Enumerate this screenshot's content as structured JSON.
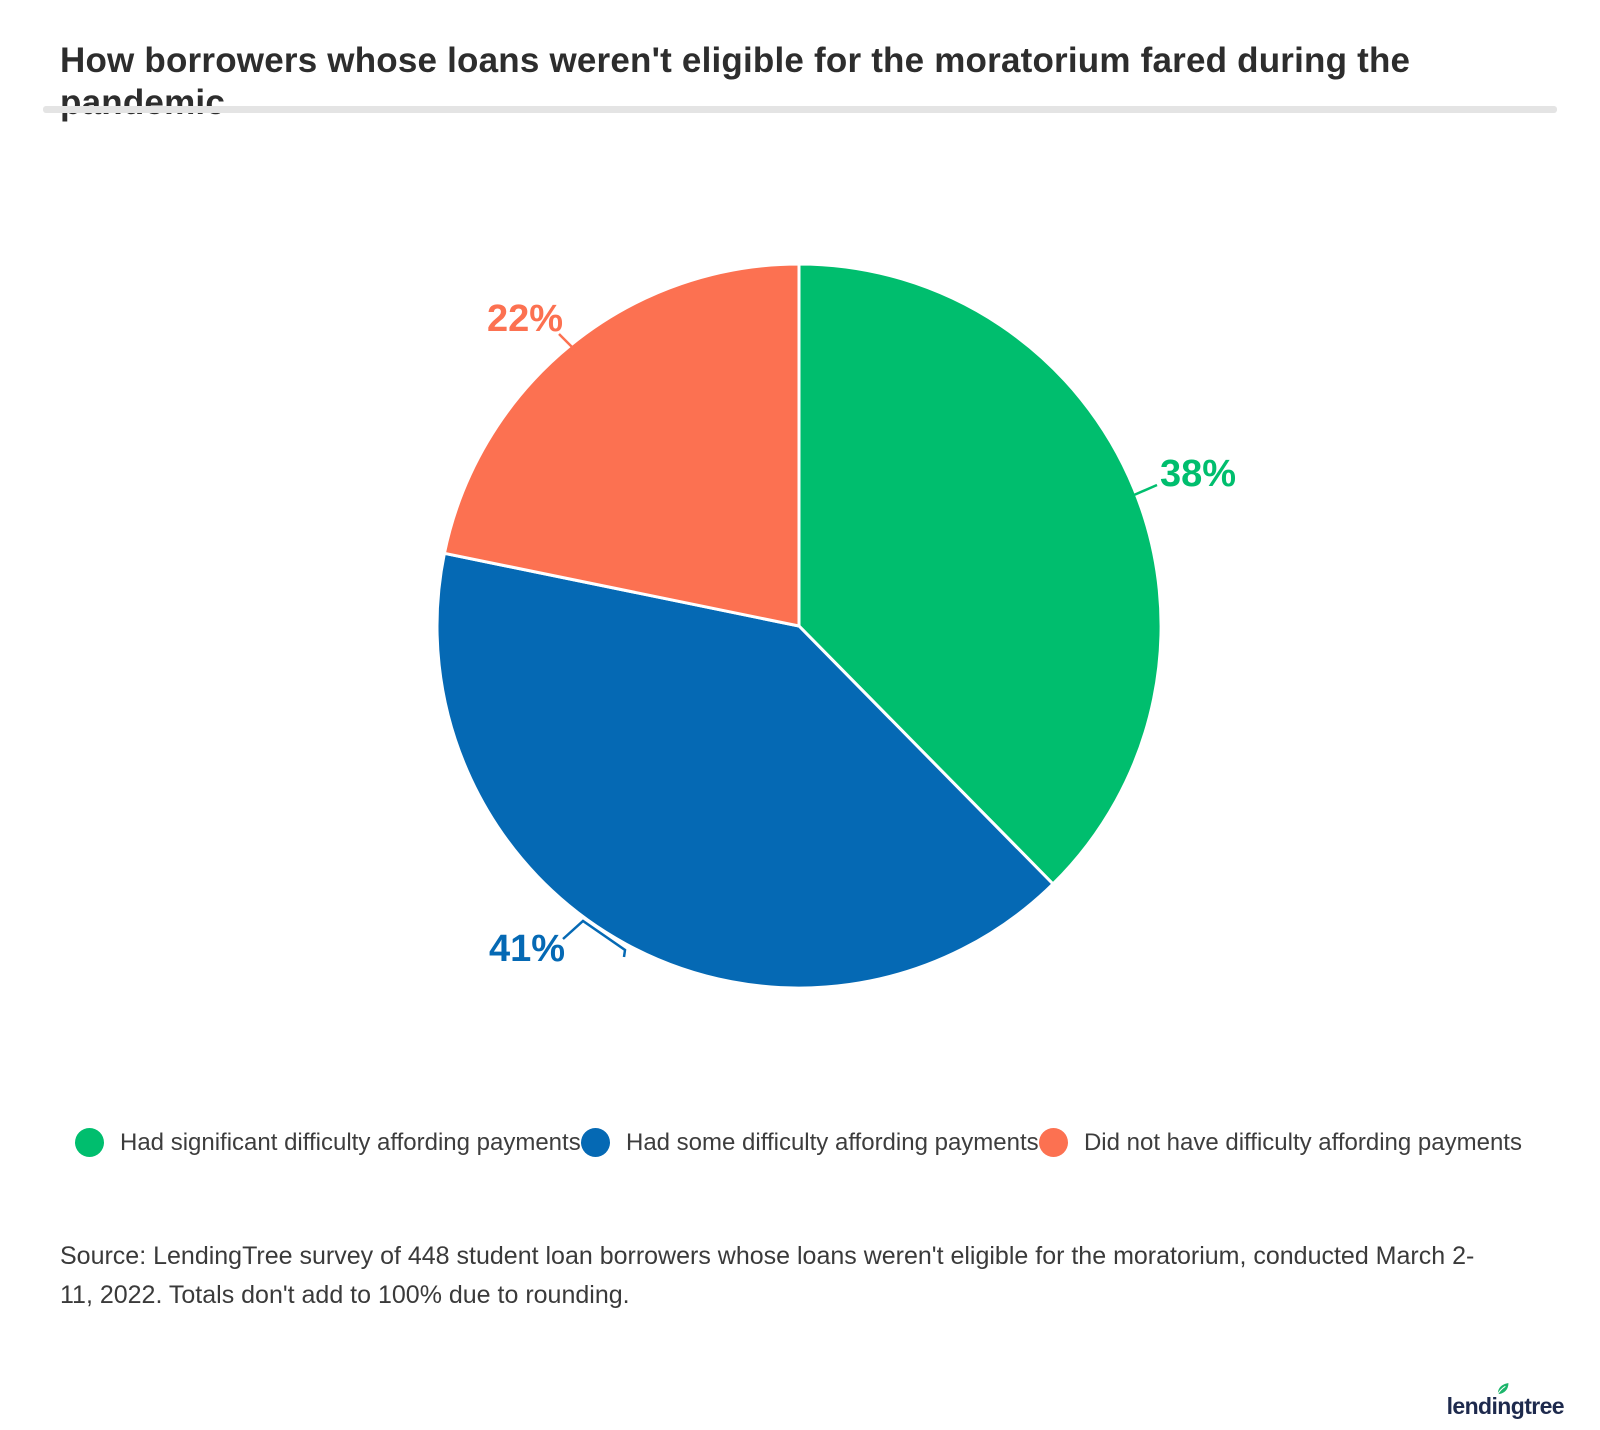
{
  "title": "How borrowers whose loans weren't eligible for the moratorium fared during the pandemic",
  "chart_data": {
    "type": "pie",
    "title": "How borrowers whose loans weren't eligible for the moratorium fared during the pandemic",
    "slices": [
      {
        "label": "Had significant difficulty affording payments",
        "value": 38,
        "unit": "%",
        "color": "#00BE6E"
      },
      {
        "label": "Had some difficulty affording payments",
        "value": 41,
        "unit": "%",
        "color": "#0569B4"
      },
      {
        "label": "Did not have difficulty affording payments",
        "value": 22,
        "unit": "%",
        "color": "#FC7151"
      }
    ],
    "start_angle_deg": 0,
    "direction": "clockwise",
    "slice_border_color": "#ffffff",
    "legend_position": "bottom",
    "note": "Totals don't add to 100% due to rounding."
  },
  "source_note": "Source: LendingTree survey of 448 student loan borrowers whose loans weren't eligible for the moratorium, conducted March 2-11, 2022. Totals don't add to 100% due to rounding.",
  "branding": {
    "logo_text": "lendingtree",
    "logo_text_color": "#1e2a4d",
    "leaf_color": "#1cb56b"
  }
}
